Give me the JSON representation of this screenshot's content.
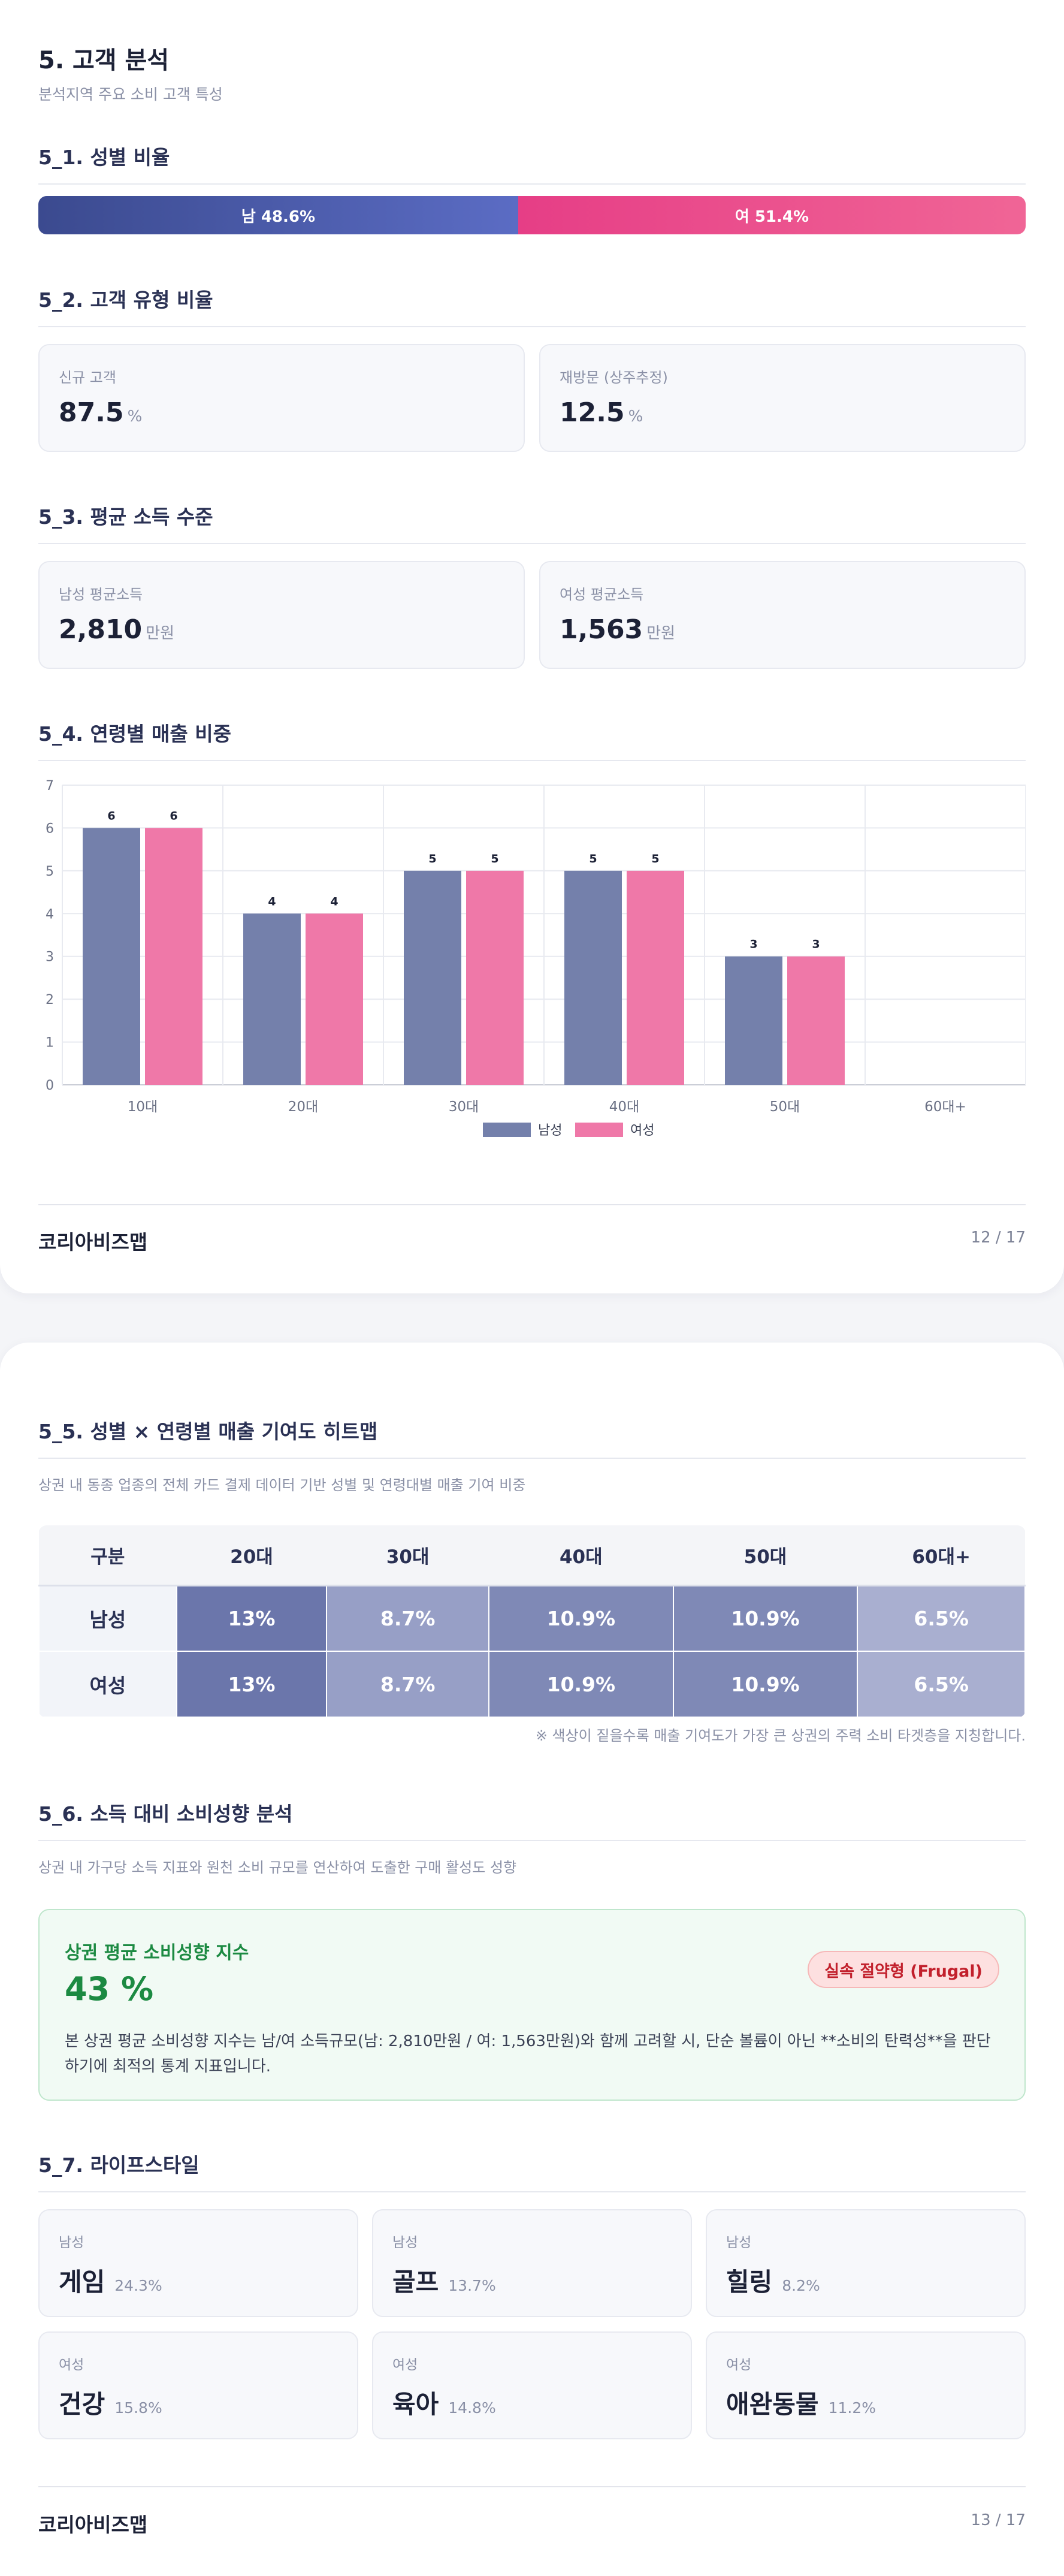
{
  "page1": {
    "title": "5. 고객 분석",
    "subtitle": "분석지역 주요 소비 고객 특성",
    "s1": {
      "heading": "5_1. 성별 비율",
      "male_label": "남 48.6%",
      "female_label": "여 51.4%",
      "male_pct": 48.6,
      "female_pct": 51.4
    },
    "s2": {
      "heading": "5_2. 고객 유형 비율",
      "cards": [
        {
          "label": "신규 고객",
          "value": "87.5",
          "unit": "%"
        },
        {
          "label": "재방문 (상주추정)",
          "value": "12.5",
          "unit": "%"
        }
      ]
    },
    "s3": {
      "heading": "5_3. 평균 소득 수준",
      "cards": [
        {
          "label": "남성 평균소득",
          "value": "2,810",
          "unit": "만원"
        },
        {
          "label": "여성 평균소득",
          "value": "1,563",
          "unit": "만원"
        }
      ]
    },
    "s4": {
      "heading": "5_4. 연령별 매출 비중"
    },
    "footer": {
      "brand": "코리아비즈맵",
      "page": "12 / 17"
    }
  },
  "chart_data": {
    "type": "bar",
    "categories": [
      "10대",
      "20대",
      "30대",
      "40대",
      "50대",
      "60대+"
    ],
    "series": [
      {
        "name": "남성",
        "values": [
          6,
          4,
          5,
          5,
          3,
          null
        ],
        "color": "#7480ab"
      },
      {
        "name": "여성",
        "values": [
          6,
          4,
          5,
          5,
          3,
          null
        ],
        "color": "#ef78a8"
      }
    ],
    "data_labels": [
      "6",
      "6",
      "4",
      "4",
      "5",
      "5",
      "5",
      "5",
      "3",
      "3"
    ],
    "ylim": [
      0,
      7
    ],
    "yticks": [
      "0",
      "1",
      "2",
      "3",
      "4",
      "5",
      "6",
      "7"
    ],
    "grid": true,
    "legend_position": "bottom"
  },
  "page2": {
    "s5": {
      "heading": "5_5. 성별 × 연령별 매출 기여도 히트맵",
      "desc": "상권 내 동종 업종의 전체 카드 결제 데이터 기반 성별 및 연령대별 매출 기여 비중",
      "headers": [
        "구분",
        "20대",
        "30대",
        "40대",
        "50대",
        "60대+"
      ],
      "rows": [
        {
          "label": "남성",
          "cells": [
            {
              "text": "13%",
              "color": "#6b76ab"
            },
            {
              "text": "8.7%",
              "color": "#979fc6"
            },
            {
              "text": "10.9%",
              "color": "#7f89b6"
            },
            {
              "text": "10.9%",
              "color": "#7f89b6"
            },
            {
              "text": "6.5%",
              "color": "#a9afd0"
            }
          ]
        },
        {
          "label": "여성",
          "cells": [
            {
              "text": "13%",
              "color": "#6b76ab"
            },
            {
              "text": "8.7%",
              "color": "#979fc6"
            },
            {
              "text": "10.9%",
              "color": "#7f89b6"
            },
            {
              "text": "10.9%",
              "color": "#7f89b6"
            },
            {
              "text": "6.5%",
              "color": "#a9afd0"
            }
          ]
        }
      ],
      "note": "※ 색상이 짙을수록 매출 기여도가 가장 큰 상권의 주력 소비 타겟층을 지칭합니다."
    },
    "s6": {
      "heading": "5_6. 소득 대비 소비성향 분석",
      "desc": "상권 내 가구당 소득 지표와 원천 소비 규모를 연산하여 도출한 구매 활성도 성향",
      "box_title": "상권 평균 소비성향 지수",
      "box_value": "43 %",
      "badge": "실속 절약형 (Frugal)",
      "text": "본 상권 평균 소비성향 지수는 남/여 소득규모(남: 2,810만원 / 여: 1,563만원)와 함께 고려할 시, 단순 볼륨이 아닌 **소비의 탄력성**을 판단하기에 최적의 통계 지표입니다."
    },
    "s7": {
      "heading": "5_7. 라이프스타일",
      "cards": [
        {
          "gender": "남성",
          "name": "게임",
          "pct": "24.3%"
        },
        {
          "gender": "남성",
          "name": "골프",
          "pct": "13.7%"
        },
        {
          "gender": "남성",
          "name": "힐링",
          "pct": "8.2%"
        },
        {
          "gender": "여성",
          "name": "건강",
          "pct": "15.8%"
        },
        {
          "gender": "여성",
          "name": "육아",
          "pct": "14.8%"
        },
        {
          "gender": "여성",
          "name": "애완동물",
          "pct": "11.2%"
        }
      ]
    },
    "footer": {
      "brand": "코리아비즈맵",
      "page": "13 / 17"
    }
  }
}
